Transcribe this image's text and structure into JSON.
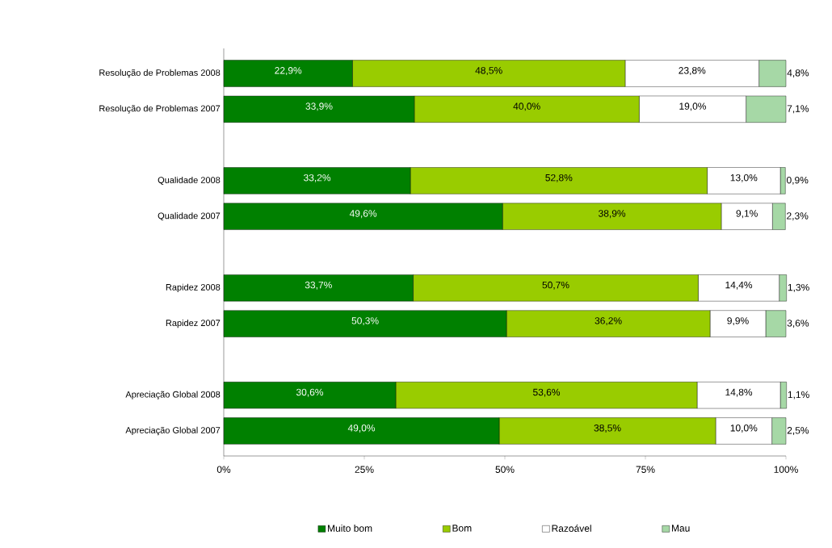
{
  "chart_data": {
    "type": "bar",
    "orientation": "horizontal",
    "stacked": true,
    "categories": [
      "Resolução de Problemas 2008",
      "Resolução de Problemas 2007",
      null,
      "Qualidade 2008",
      "Qualidade 2007",
      null,
      "Rapidez 2008",
      "Rapidez 2007",
      null,
      "Apreciação Global 2008",
      "Apreciação Global 2007"
    ],
    "series": [
      {
        "name": "Muito bom",
        "color": "#008000",
        "values": [
          22.9,
          33.9,
          null,
          33.2,
          49.6,
          null,
          33.7,
          50.3,
          null,
          30.6,
          49.0
        ],
        "value_labels": [
          "22,9%",
          "33,9%",
          null,
          "33,2%",
          "49,6%",
          null,
          "33,7%",
          "50,3%",
          null,
          "30,6%",
          "49,0%"
        ]
      },
      {
        "name": "Bom",
        "color": "#99cc00",
        "values": [
          48.5,
          40.0,
          null,
          52.8,
          38.9,
          null,
          50.7,
          36.2,
          null,
          53.6,
          38.5
        ],
        "value_labels": [
          "48,5%",
          "40,0%",
          null,
          "52,8%",
          "38,9%",
          null,
          "50,7%",
          "36,2%",
          null,
          "53,6%",
          "38,5%"
        ]
      },
      {
        "name": "Razoável",
        "color": "#ffffff",
        "values": [
          23.8,
          19.0,
          null,
          13.0,
          9.1,
          null,
          14.4,
          9.9,
          null,
          14.8,
          10.0
        ],
        "value_labels": [
          "23,8%",
          "19,0%",
          null,
          "13,0%",
          "9,1%",
          null,
          "14,4%",
          "9,9%",
          null,
          "14,8%",
          "10,0%"
        ]
      },
      {
        "name": "Mau",
        "color": "#a6d8a6",
        "values": [
          4.8,
          7.1,
          null,
          0.9,
          2.3,
          null,
          1.3,
          3.6,
          null,
          1.1,
          2.5
        ],
        "value_labels": [
          "4,8%",
          "7,1%",
          null,
          "0,9%",
          "2,3%",
          null,
          "1,3%",
          "3,6%",
          null,
          "1,1%",
          "2,5%"
        ]
      }
    ],
    "xlim": [
      0,
      100
    ],
    "xticks": [
      {
        "value": 0,
        "label": "0%"
      },
      {
        "value": 25,
        "label": "25%"
      },
      {
        "value": 50,
        "label": "50%"
      },
      {
        "value": 75,
        "label": "75%"
      },
      {
        "value": 100,
        "label": "100%"
      }
    ],
    "legend": "bottom"
  }
}
